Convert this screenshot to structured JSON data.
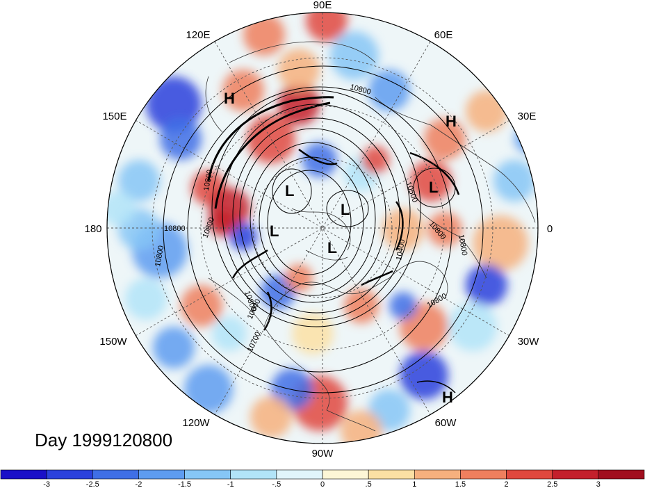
{
  "title": "Day 1999120800",
  "longitude_labels": [
    "90E",
    "60E",
    "30E",
    "0",
    "30W",
    "60W",
    "90W",
    "120W",
    "150W",
    "180",
    "150E",
    "120E"
  ],
  "contour_labels": [
    "10800",
    "10800",
    "10800",
    "10800",
    "10800",
    "10800",
    "10800",
    "10800",
    "10800",
    "10700",
    "10600",
    "10500",
    "10400"
  ],
  "pressure_markers": [
    {
      "type": "H"
    },
    {
      "type": "H"
    },
    {
      "type": "H"
    },
    {
      "type": "L"
    },
    {
      "type": "L"
    },
    {
      "type": "L"
    },
    {
      "type": "L"
    },
    {
      "type": "L"
    }
  ],
  "colorbar": {
    "levels": [
      "-3",
      "-2.5",
      "-2",
      "-1.5",
      "-1",
      "-.5",
      "0",
      ".5",
      "1",
      "1.5",
      "2",
      "2.5",
      "3"
    ],
    "colors": [
      "#1a10c8",
      "#2b41dc",
      "#3f6fe6",
      "#5e9cf0",
      "#86c6f6",
      "#b2e4f8",
      "#e1f5fb",
      "#fdf6d6",
      "#fbe0a4",
      "#f6b07e",
      "#ef7f5e",
      "#e0483e",
      "#c4202c",
      "#a10f1f"
    ]
  },
  "colors": {
    "land_lines": "#333333",
    "contour": "#000000",
    "grid": "#555555"
  }
}
